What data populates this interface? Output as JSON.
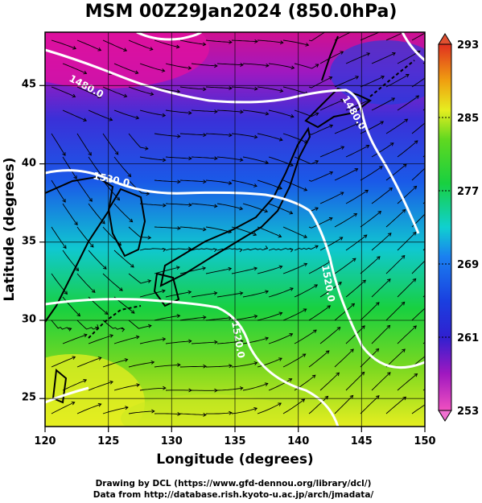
{
  "title": "MSM 00Z29Jan2024 (850.0hPa)",
  "credits": {
    "line1": "Drawing by DCL (https://www.gfd-dennou.org/library/dcl/)",
    "line2": "Data from http://database.rish.kyoto-u.ac.jp/arch/jmadata/"
  },
  "map": {
    "xlabel": "Longitude (degrees)",
    "ylabel": "Latitude  (degrees)",
    "lon_range": [
      120,
      150
    ],
    "lat_range": [
      22.4,
      47.6
    ],
    "lon_ticks": [
      "120",
      "125",
      "130",
      "135",
      "140",
      "145",
      "150"
    ],
    "lat_ticks": [
      "25",
      "30",
      "35",
      "40",
      "45"
    ],
    "contour_labels": [
      "1480.0",
      "1480.0",
      "1520.0",
      "1520.0",
      "1520.0"
    ],
    "field": "temperature (K), shaded; geopotential height (m), white contours; wind, streamlines",
    "colors": {
      "cold": "#d01090",
      "purple": "#6020c0",
      "blue": "#1a40e0",
      "cyan": "#10d0d0",
      "green": "#18d030",
      "yellow": "#e8ee20",
      "warm": "#f07010",
      "hot": "#e03020",
      "contour": "#ffffff",
      "coast": "#000000"
    }
  },
  "colorbar": {
    "min": 253,
    "max": 293,
    "labels": [
      "293",
      "285",
      "277",
      "269",
      "261",
      "253"
    ]
  }
}
